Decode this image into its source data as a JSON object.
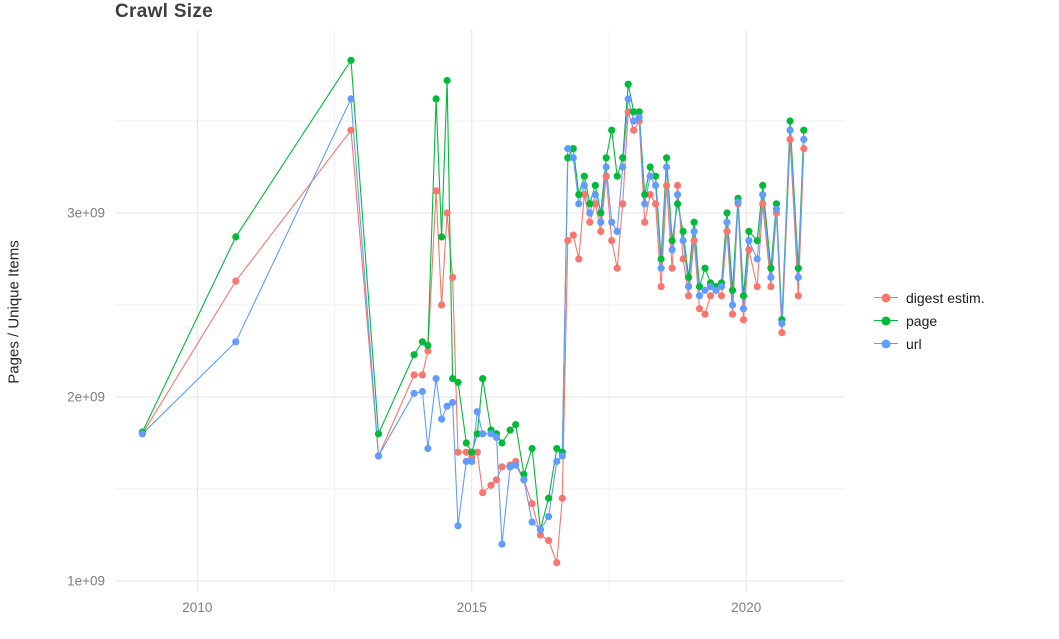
{
  "chart_data": {
    "type": "line",
    "title": "Crawl Size",
    "xlabel": "",
    "ylabel": "Pages / Unique Items",
    "grid": true,
    "legend_position": "right",
    "background": "#ffffff",
    "gridline_major_color": "#e4e4e4",
    "gridline_minor_color": "#f1f1f1",
    "xlim": [
      2008.5,
      2021.8
    ],
    "ylim": [
      1.0,
      4.0
    ],
    "y_unit": "x1e9",
    "x_ticks": [
      2010,
      2015,
      2020
    ],
    "x_tick_labels": [
      "2010",
      "2015",
      "2020"
    ],
    "x_minor_ticks": [
      2012.5,
      2017.5
    ],
    "y_ticks": [
      1,
      2,
      3
    ],
    "y_tick_labels": [
      "1e+09",
      "2e+09",
      "3e+09"
    ],
    "y_minor_ticks": [
      1.5,
      2.5,
      3.5
    ],
    "x": [
      2009,
      2010.7,
      2012.8,
      2013.3,
      2013.95,
      2014.1,
      2014.2,
      2014.35,
      2014.45,
      2014.55,
      2014.65,
      2014.75,
      2014.9,
      2015.0,
      2015.1,
      2015.2,
      2015.35,
      2015.45,
      2015.55,
      2015.7,
      2015.8,
      2015.95,
      2016.1,
      2016.25,
      2016.4,
      2016.55,
      2016.65,
      2016.75,
      2016.85,
      2016.95,
      2017.05,
      2017.15,
      2017.25,
      2017.35,
      2017.45,
      2017.55,
      2017.65,
      2017.75,
      2017.85,
      2017.95,
      2018.05,
      2018.15,
      2018.25,
      2018.35,
      2018.45,
      2018.55,
      2018.65,
      2018.75,
      2018.85,
      2018.95,
      2019.05,
      2019.15,
      2019.25,
      2019.35,
      2019.45,
      2019.55,
      2019.65,
      2019.75,
      2019.85,
      2019.95,
      2020.05,
      2020.2,
      2020.3,
      2020.45,
      2020.55,
      2020.65,
      2020.8,
      2020.95,
      2021.05
    ],
    "series": [
      {
        "name": "digest estim.",
        "color": "#F8766D",
        "values": [
          1.8,
          2.63,
          3.45,
          1.68,
          2.12,
          2.12,
          2.25,
          3.12,
          2.5,
          3.0,
          2.65,
          1.7,
          1.7,
          1.67,
          1.7,
          1.48,
          1.52,
          1.55,
          1.62,
          1.63,
          1.65,
          1.55,
          1.42,
          1.25,
          1.22,
          1.1,
          1.45,
          2.85,
          2.88,
          2.75,
          3.1,
          2.95,
          3.05,
          2.9,
          3.2,
          2.85,
          2.7,
          3.05,
          3.55,
          3.45,
          3.5,
          2.95,
          3.1,
          3.05,
          2.6,
          3.15,
          2.7,
          3.15,
          2.75,
          2.55,
          2.85,
          2.48,
          2.45,
          2.55,
          2.58,
          2.55,
          2.9,
          2.45,
          3.05,
          2.42,
          2.8,
          2.6,
          3.05,
          2.6,
          3.0,
          2.35,
          3.4,
          2.55,
          3.35
        ]
      },
      {
        "name": "page",
        "color": "#00BA38",
        "values": [
          1.81,
          2.87,
          3.83,
          1.8,
          2.23,
          2.3,
          2.28,
          3.62,
          2.87,
          3.72,
          2.1,
          2.08,
          1.75,
          1.7,
          1.8,
          2.1,
          1.82,
          1.8,
          1.75,
          1.82,
          1.85,
          1.58,
          1.72,
          1.28,
          1.45,
          1.72,
          1.7,
          3.3,
          3.35,
          3.1,
          3.2,
          3.05,
          3.15,
          3.0,
          3.3,
          3.45,
          3.2,
          3.3,
          3.7,
          3.55,
          3.55,
          3.1,
          3.25,
          3.2,
          2.75,
          3.3,
          2.85,
          3.05,
          2.9,
          2.65,
          2.95,
          2.6,
          2.7,
          2.62,
          2.6,
          2.62,
          3.0,
          2.58,
          3.08,
          2.55,
          2.9,
          2.85,
          3.15,
          2.7,
          3.05,
          2.42,
          3.5,
          2.7,
          3.45
        ]
      },
      {
        "name": "url",
        "color": "#619CFF",
        "values": [
          1.8,
          2.3,
          3.62,
          1.68,
          2.02,
          2.03,
          1.72,
          2.1,
          1.88,
          1.95,
          1.97,
          1.3,
          1.65,
          1.65,
          1.92,
          1.8,
          1.8,
          1.78,
          1.2,
          1.62,
          1.63,
          1.55,
          1.32,
          1.28,
          1.35,
          1.65,
          1.68,
          3.35,
          3.3,
          3.05,
          3.15,
          3.0,
          3.1,
          2.95,
          3.25,
          2.95,
          2.9,
          3.25,
          3.62,
          3.5,
          3.52,
          3.05,
          3.2,
          3.15,
          2.7,
          3.25,
          2.8,
          3.1,
          2.85,
          2.6,
          2.9,
          2.55,
          2.58,
          2.6,
          2.58,
          2.6,
          2.95,
          2.5,
          3.06,
          2.48,
          2.85,
          2.75,
          3.1,
          2.65,
          3.02,
          2.4,
          3.45,
          2.65,
          3.4
        ]
      }
    ]
  }
}
